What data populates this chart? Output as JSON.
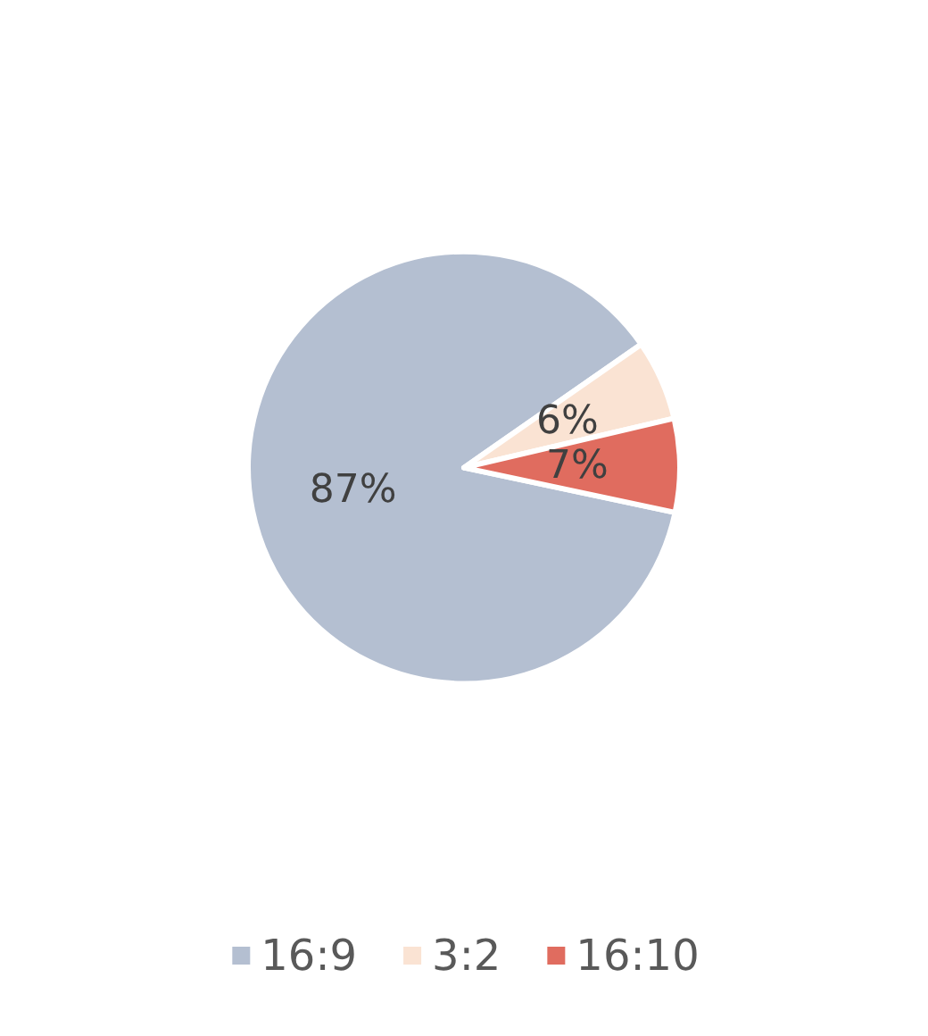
{
  "chart_data": {
    "type": "pie",
    "categories": [
      "16:9",
      "3:2",
      "16:10"
    ],
    "values": [
      87,
      6,
      7
    ],
    "colors": [
      "#b4bfd1",
      "#fae3d3",
      "#e06c5f"
    ],
    "value_labels": [
      "87%",
      "6%",
      "7%"
    ],
    "legend": "bottom"
  }
}
